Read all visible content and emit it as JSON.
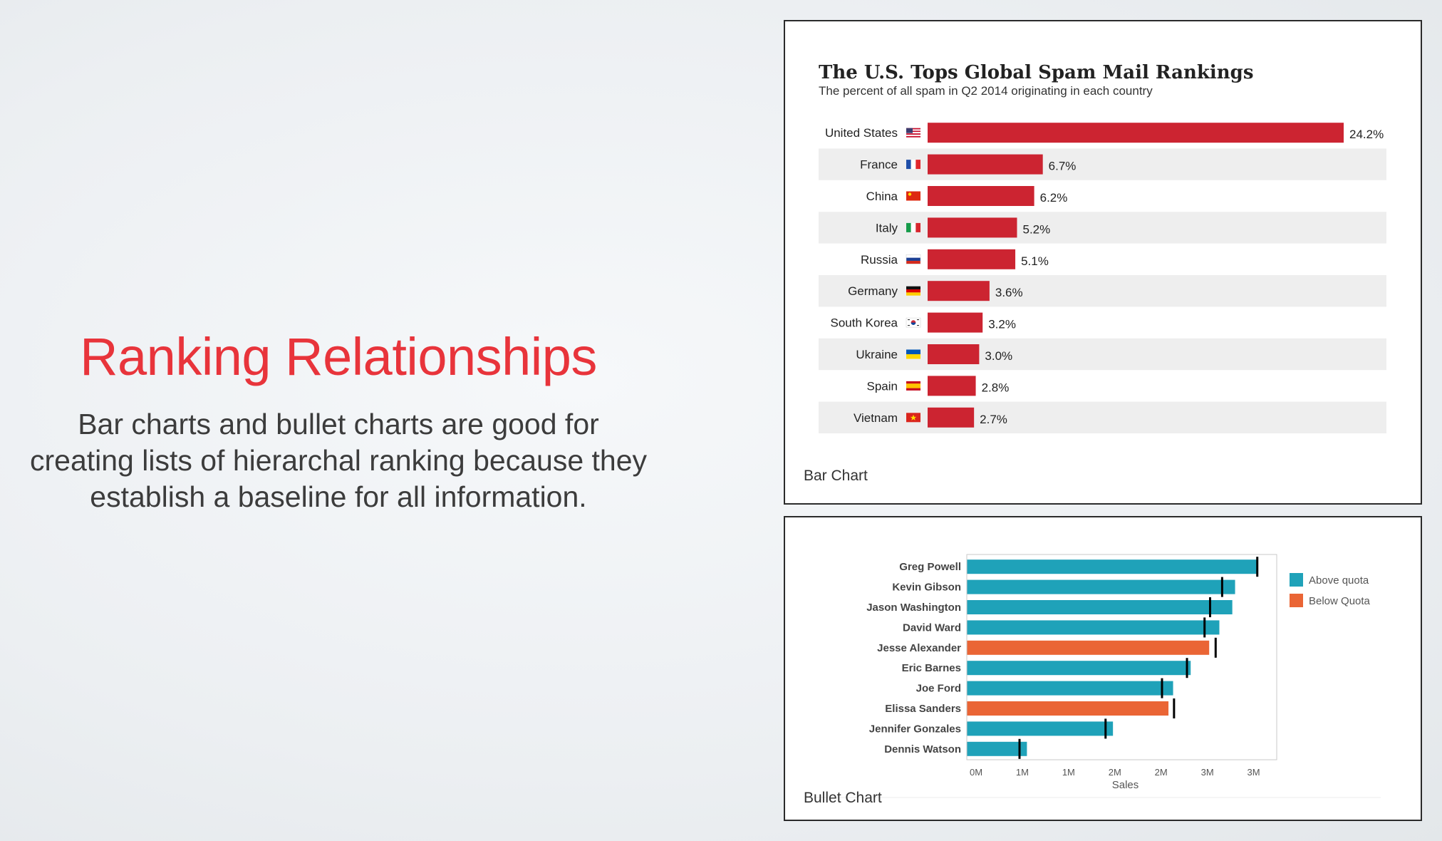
{
  "slide": {
    "title": "Ranking Relationships",
    "body": "Bar charts and bullet charts are good for creating lists of hierarchal ranking because they establish a baseline for all information."
  },
  "bar_panel": {
    "caption": "Bar Chart"
  },
  "bullet_panel": {
    "caption": "Bullet Chart"
  },
  "chart_data": [
    {
      "type": "bar",
      "title": "The U.S. Tops Global Spam Mail Rankings",
      "subtitle": "The percent of all spam in Q2 2014 originating in each country",
      "categories": [
        "United States",
        "France",
        "China",
        "Italy",
        "Russia",
        "Germany",
        "South Korea",
        "Ukraine",
        "Spain",
        "Vietnam"
      ],
      "values": [
        24.2,
        6.7,
        6.2,
        5.2,
        5.1,
        3.6,
        3.2,
        3.0,
        2.8,
        2.7
      ],
      "value_labels": [
        "24.2%",
        "6.7%",
        "6.2%",
        "5.2%",
        "5.1%",
        "3.6%",
        "3.2%",
        "3.0%",
        "2.8%",
        "2.7%"
      ],
      "flags": [
        "us",
        "fr",
        "cn",
        "it",
        "ru",
        "de",
        "kr",
        "ua",
        "es",
        "vn"
      ],
      "bar_color": "#cc2431",
      "stripe_color": "#eeeeee",
      "xlim": [
        0,
        24.2
      ],
      "grid": false
    },
    {
      "type": "bullet",
      "categories": [
        "Greg Powell",
        "Kevin Gibson",
        "Jason Washington",
        "David Ward",
        "Jesse Alexander",
        "Eric Barnes",
        "Joe Ford",
        "Elissa Sanders",
        "Jennifer Gonzales",
        "Dennis Watson"
      ],
      "values": [
        3.15,
        2.9,
        2.87,
        2.73,
        2.62,
        2.42,
        2.23,
        2.18,
        1.58,
        0.65
      ],
      "targets": [
        3.14,
        2.76,
        2.63,
        2.57,
        2.69,
        2.38,
        2.11,
        2.24,
        1.5,
        0.57
      ],
      "status": [
        "above",
        "above",
        "above",
        "above",
        "below",
        "above",
        "above",
        "below",
        "above",
        "above"
      ],
      "colors": {
        "above": "#1fa2b9",
        "below": "#ea6535",
        "target": "#000000"
      },
      "xlabel": "Sales",
      "x_ticks": [
        0,
        0.5,
        1,
        1.5,
        2,
        2.5,
        3
      ],
      "x_tick_labels": [
        "0M",
        "1M",
        "1M",
        "2M",
        "2M",
        "3M",
        "3M"
      ],
      "xlim": [
        0,
        3.35
      ],
      "legend": [
        {
          "name": "Above quota",
          "key": "above"
        },
        {
          "name": "Below Quota",
          "key": "below"
        }
      ],
      "legend_position": "right"
    }
  ]
}
